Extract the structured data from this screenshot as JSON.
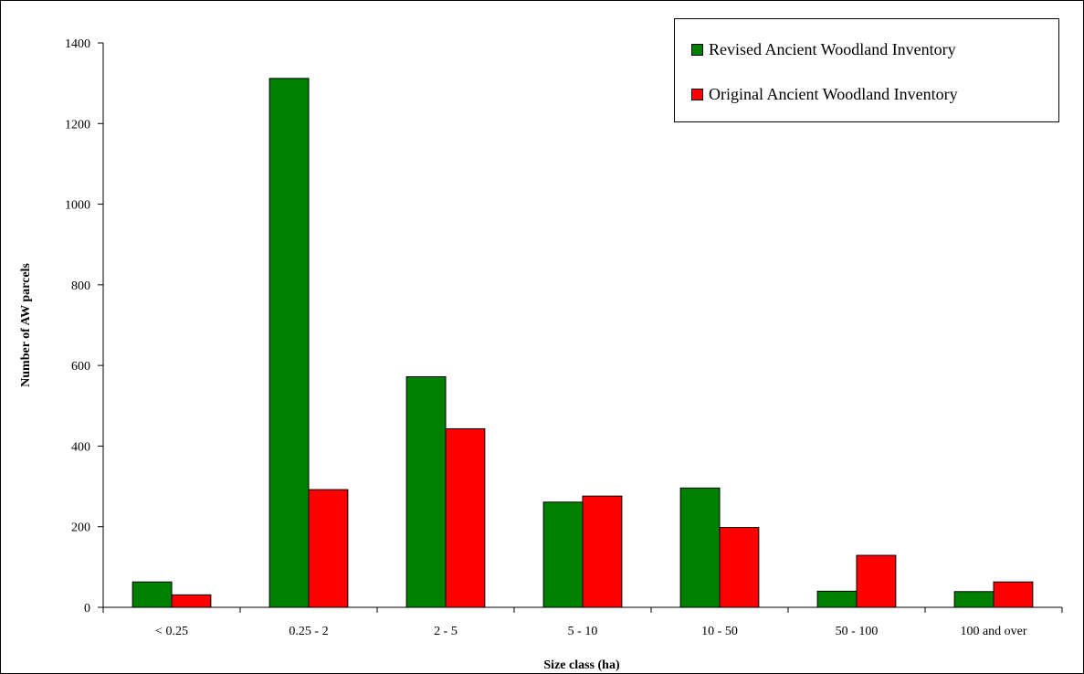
{
  "chart_data": {
    "type": "bar",
    "xlabel": "Size class (ha)",
    "ylabel": "Number of AW parcels",
    "ylim": [
      0,
      1400
    ],
    "yticks": [
      "0",
      "200",
      "400",
      "600",
      "800",
      "1000",
      "1200",
      "1400"
    ],
    "categories": [
      "< 0.25",
      "0.25 - 2",
      "2 - 5",
      "5 - 10",
      "10 - 50",
      "50 - 100",
      "100 and over"
    ],
    "series": [
      {
        "name": "Revised Ancient Woodland Inventory",
        "color": "#008000",
        "values": [
          63,
          1312,
          572,
          261,
          296,
          40,
          39
        ]
      },
      {
        "name": "Original Ancient Woodland Inventory",
        "color": "#ff0000",
        "values": [
          31,
          292,
          443,
          276,
          198,
          129,
          63
        ]
      }
    ],
    "legend_position": "top-right",
    "grid": false
  }
}
